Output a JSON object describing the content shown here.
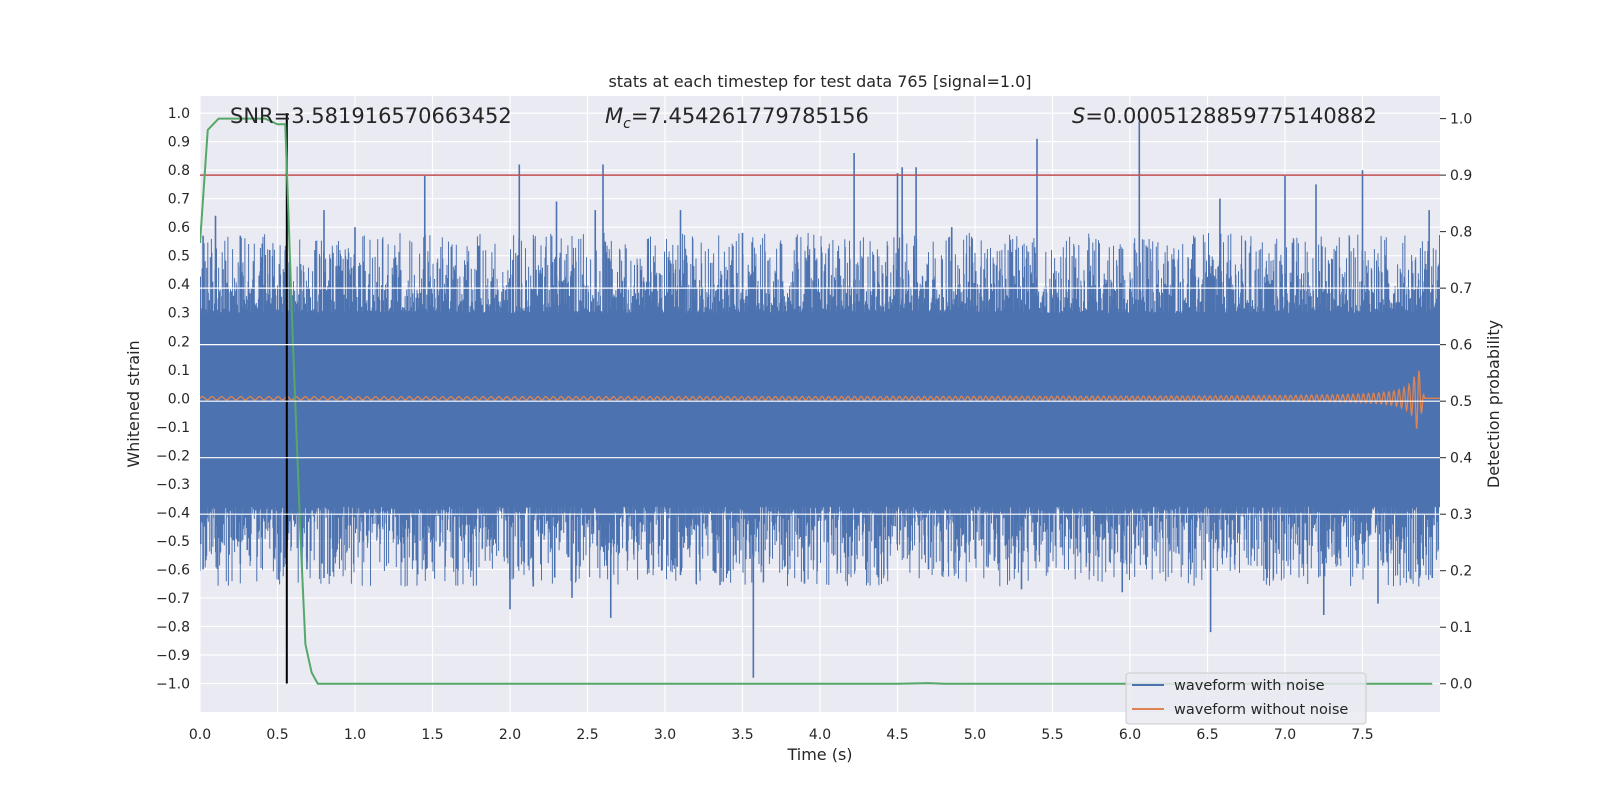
{
  "chart_data": {
    "type": "line",
    "title": "stats at each timestep for test data 765 [signal=1.0]",
    "xlabel": "Time (s)",
    "ylabel_left": "Whitened strain",
    "ylabel_right": "Detection probability",
    "xlim": [
      0,
      8
    ],
    "ylim_left": [
      -1.1,
      1.06
    ],
    "ylim_right": [
      -0.05,
      1.04
    ],
    "x_ticks": [
      "0.0",
      "0.5",
      "1.0",
      "1.5",
      "2.0",
      "2.5",
      "3.0",
      "3.5",
      "4.0",
      "4.5",
      "5.0",
      "5.5",
      "6.0",
      "6.5",
      "7.0",
      "7.5"
    ],
    "x_tick_values": [
      0,
      0.5,
      1,
      1.5,
      2,
      2.5,
      3,
      3.5,
      4,
      4.5,
      5,
      5.5,
      6,
      6.5,
      7,
      7.5
    ],
    "y_left_ticks": [
      "1.0",
      "0.9",
      "0.8",
      "0.7",
      "0.6",
      "0.5",
      "0.4",
      "0.3",
      "0.2",
      "0.1",
      "0.0",
      "−0.1",
      "−0.2",
      "−0.3",
      "−0.4",
      "−0.5",
      "−0.6",
      "−0.7",
      "−0.8",
      "−0.9",
      "−1.0"
    ],
    "y_left_tick_values": [
      1.0,
      0.9,
      0.8,
      0.7,
      0.6,
      0.5,
      0.4,
      0.3,
      0.2,
      0.1,
      0.0,
      -0.1,
      -0.2,
      -0.3,
      -0.4,
      -0.5,
      -0.6,
      -0.7,
      -0.8,
      -0.9,
      -1.0
    ],
    "y_right_ticks": [
      "1.0",
      "0.9",
      "0.8",
      "0.7",
      "0.6",
      "0.5",
      "0.4",
      "0.3",
      "0.2",
      "0.1",
      "0.0"
    ],
    "y_right_tick_values": [
      1.0,
      0.9,
      0.8,
      0.7,
      0.6,
      0.5,
      0.4,
      0.3,
      0.2,
      0.1,
      0.0
    ],
    "annotations": {
      "snr": "SNR=3.581916570663452",
      "mc_symbol": "M",
      "mc_sub": "c",
      "mc_value": "=7.454261779785156",
      "s_symbol": "S",
      "s_value": "=0.0005128859775140882"
    },
    "legend": {
      "position": "lower-right",
      "entries": [
        {
          "label": "waveform with noise",
          "color": "#4c72b0"
        },
        {
          "label": "waveform without noise",
          "color": "#dd8452"
        }
      ]
    },
    "series": [
      {
        "name": "waveform with noise",
        "axis": "left",
        "color": "#4c72b0",
        "style": "dense noise band",
        "band_typical": 0.3,
        "spikes_up": [
          [
            0.02,
            0.57
          ],
          [
            0.1,
            0.64
          ],
          [
            0.26,
            0.57
          ],
          [
            0.45,
            0.52
          ],
          [
            0.55,
            0.52
          ],
          [
            0.8,
            0.66
          ],
          [
            1.0,
            0.6
          ],
          [
            1.45,
            0.78
          ],
          [
            2.06,
            0.82
          ],
          [
            2.3,
            0.69
          ],
          [
            2.55,
            0.66
          ],
          [
            2.6,
            0.82
          ],
          [
            3.1,
            0.66
          ],
          [
            3.5,
            0.58
          ],
          [
            4.22,
            0.86
          ],
          [
            4.5,
            0.79
          ],
          [
            4.53,
            0.81
          ],
          [
            4.62,
            0.81
          ],
          [
            4.85,
            0.6
          ],
          [
            5.4,
            0.91
          ],
          [
            6.06,
            0.97
          ],
          [
            6.58,
            0.7
          ],
          [
            7.0,
            0.78
          ],
          [
            7.2,
            0.75
          ],
          [
            7.5,
            0.8
          ],
          [
            7.93,
            0.66
          ]
        ],
        "spikes_down": [
          [
            0.02,
            -0.6
          ],
          [
            0.26,
            -0.58
          ],
          [
            0.55,
            -0.56
          ],
          [
            0.69,
            -0.6
          ],
          [
            0.8,
            -0.63
          ],
          [
            2.0,
            -0.74
          ],
          [
            2.15,
            -0.66
          ],
          [
            2.4,
            -0.7
          ],
          [
            2.65,
            -0.77
          ],
          [
            3.1,
            -0.62
          ],
          [
            3.57,
            -0.98
          ],
          [
            3.9,
            -0.65
          ],
          [
            4.7,
            -0.6
          ],
          [
            5.3,
            -0.67
          ],
          [
            5.95,
            -0.68
          ],
          [
            6.52,
            -0.82
          ],
          [
            6.9,
            -0.6
          ],
          [
            7.25,
            -0.76
          ],
          [
            7.6,
            -0.72
          ],
          [
            7.95,
            -0.63
          ]
        ]
      },
      {
        "name": "waveform without noise",
        "axis": "left",
        "color": "#dd8452",
        "style": "chirp",
        "amplitude_start": 0.005,
        "amplitude_peak": 0.11,
        "peak_time": 7.86,
        "end_time": 8.0
      },
      {
        "name": "detection probability",
        "axis": "right",
        "color": "#55a868",
        "x": [
          0.0,
          0.05,
          0.12,
          0.18,
          0.3,
          0.42,
          0.5,
          0.55,
          0.6,
          0.65,
          0.68,
          0.72,
          0.76,
          0.8,
          0.85,
          1.0,
          2.0,
          3.0,
          4.0,
          4.5,
          4.7,
          4.8,
          5.0,
          6.0,
          7.0,
          7.95
        ],
        "y": [
          0.78,
          0.98,
          1.0,
          1.0,
          1.0,
          1.0,
          0.99,
          0.99,
          0.6,
          0.25,
          0.07,
          0.02,
          0.0,
          0.0,
          0.0,
          0.0,
          0.0,
          0.0,
          0.0,
          0.0,
          0.001,
          0.0,
          0.0,
          0.0,
          0.0,
          0.0
        ]
      }
    ],
    "reference_lines": [
      {
        "name": "threshold line",
        "axis": "right",
        "orientation": "horizontal",
        "value": 0.9,
        "color": "#c44e52"
      },
      {
        "name": "detection time marker",
        "axis": "left",
        "orientation": "vertical",
        "value": 0.56,
        "range": [
          -1.0,
          1.0
        ],
        "color": "#000000"
      }
    ]
  }
}
